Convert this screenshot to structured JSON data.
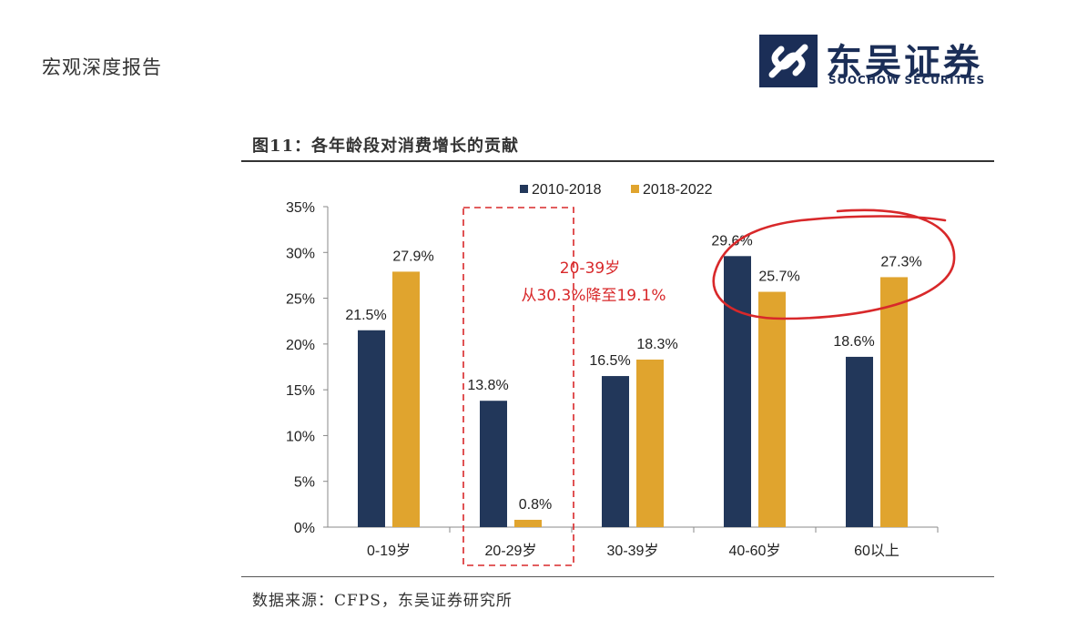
{
  "header": {
    "report_label": "宏观深度报告",
    "logo_cn": "东吴证券",
    "logo_en": "SOOCHOW SECURITIES"
  },
  "figure": {
    "title": "图11：各年龄段对消费增长的贡献",
    "source": "数据来源：CFPS，东吴证券研究所"
  },
  "colors": {
    "series_2010_2018": "#22375a",
    "series_2018_2022": "#e0a42e",
    "annotation_red": "#d8282a",
    "logo_navy": "#1b2e57"
  },
  "chart_data": {
    "type": "bar",
    "categories": [
      "0-19岁",
      "20-29岁",
      "30-39岁",
      "40-60岁",
      "60以上"
    ],
    "series": [
      {
        "name": "2010-2018",
        "values": [
          21.5,
          13.8,
          16.5,
          29.6,
          18.6
        ],
        "labels": [
          "21.5%",
          "13.8%",
          "16.5%",
          "29.6%",
          "18.6%"
        ]
      },
      {
        "name": "2018-2022",
        "values": [
          27.9,
          0.8,
          18.3,
          25.7,
          27.3
        ],
        "labels": [
          "27.9%",
          "0.8%",
          "18.3%",
          "25.7%",
          "27.3%"
        ]
      }
    ],
    "yticks": [
      "0%",
      "5%",
      "10%",
      "15%",
      "20%",
      "25%",
      "30%",
      "35%"
    ],
    "ylim": [
      0,
      35
    ],
    "legend": "top-center",
    "grid": false,
    "annotations": [
      {
        "text_line1": "20-39岁",
        "text_line2": "从30.3%降至19.1%",
        "highlight": "dashed box around 20-29岁"
      },
      {
        "highlight": "red circle around 40-60岁 and 60以上 bar tops"
      }
    ]
  }
}
